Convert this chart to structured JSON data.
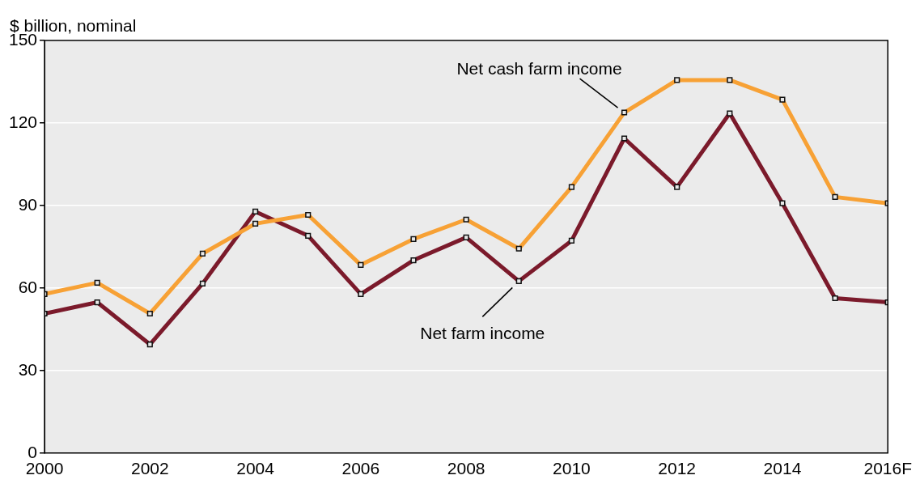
{
  "chart_data": {
    "type": "line",
    "ylabel": "$ billion, nominal",
    "x": [
      2000,
      2001,
      2002,
      2003,
      2004,
      2005,
      2006,
      2007,
      2008,
      2009,
      2010,
      2011,
      2012,
      2013,
      2014,
      2015,
      2016
    ],
    "series": [
      {
        "color": "#f7a135",
        "values": [
          57.8,
          61.9,
          50.7,
          72.5,
          83.4,
          86.6,
          68.4,
          77.8,
          84.9,
          74.3,
          96.7,
          123.8,
          135.6,
          135.6,
          128.5,
          93.1,
          90.8
        ]
      },
      {
        "color": "#7b1a2b",
        "values": [
          50.7,
          54.8,
          39.5,
          61.6,
          87.8,
          79.0,
          57.8,
          70.1,
          78.4,
          62.5,
          77.2,
          114.4,
          96.7,
          123.5,
          90.8,
          56.3,
          54.8
        ]
      }
    ],
    "annotations": [
      {
        "text": "Net cash farm income",
        "x": 2011,
        "y": 123.8
      },
      {
        "text": "Net farm income",
        "x": 2009,
        "y": 62.5
      }
    ],
    "xlim": [
      2000,
      2016
    ],
    "xticks": [
      2000,
      2002,
      2004,
      2006,
      2008,
      2010,
      2012,
      2014,
      {
        "value": 2016,
        "label": "2016F"
      }
    ],
    "ylim": [
      0,
      150
    ],
    "yticks": [
      0,
      30,
      60,
      90,
      120,
      150
    ],
    "grid": "y",
    "legend": false,
    "marker": "square",
    "line_style": "solid"
  }
}
